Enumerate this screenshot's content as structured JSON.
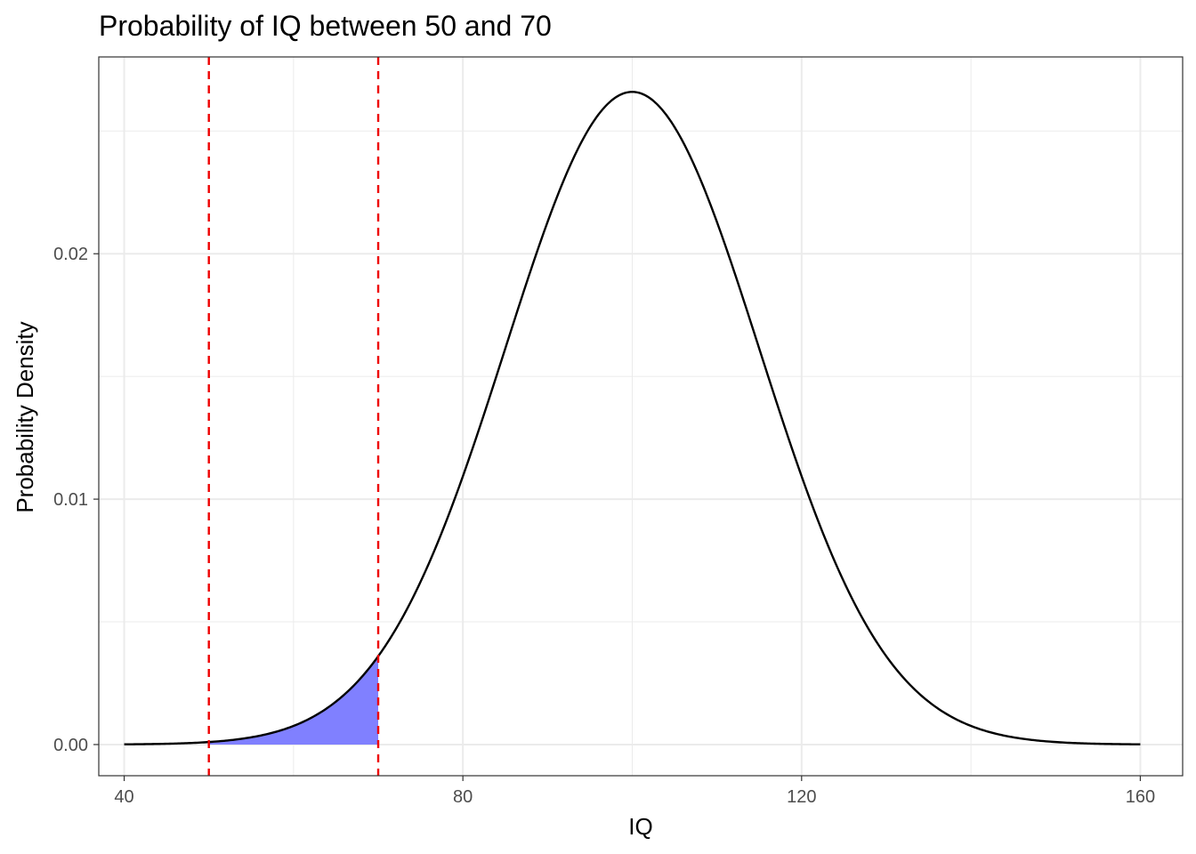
{
  "chart_data": {
    "type": "area",
    "title": "Probability of IQ between 50 and 70",
    "xlabel": "IQ",
    "ylabel": "Probability Density",
    "xlim": [
      37,
      165
    ],
    "ylim": [
      -0.00127,
      0.02802
    ],
    "x_ticks": [
      40,
      80,
      120,
      160
    ],
    "x_tick_labels": [
      "40",
      "80",
      "120",
      "160"
    ],
    "y_ticks": [
      0,
      0.01,
      0.02
    ],
    "y_tick_labels": [
      "0.00",
      "0.01",
      "0.02"
    ],
    "x_minor_ticks": [
      60,
      100,
      140
    ],
    "y_minor_ticks": [
      0.005,
      0.015,
      0.025
    ],
    "grid": true,
    "legend": "none",
    "curve": {
      "distribution": "normal",
      "mean": 100,
      "sd": 15,
      "x_range": [
        40,
        160
      ],
      "color": "#000000"
    },
    "shaded_region": {
      "from": 50,
      "to": 70,
      "color": "#8080ff"
    },
    "vlines": [
      {
        "x": 50,
        "color": "#ee0000",
        "style": "dashed"
      },
      {
        "x": 70,
        "color": "#ee0000",
        "style": "dashed"
      }
    ]
  }
}
